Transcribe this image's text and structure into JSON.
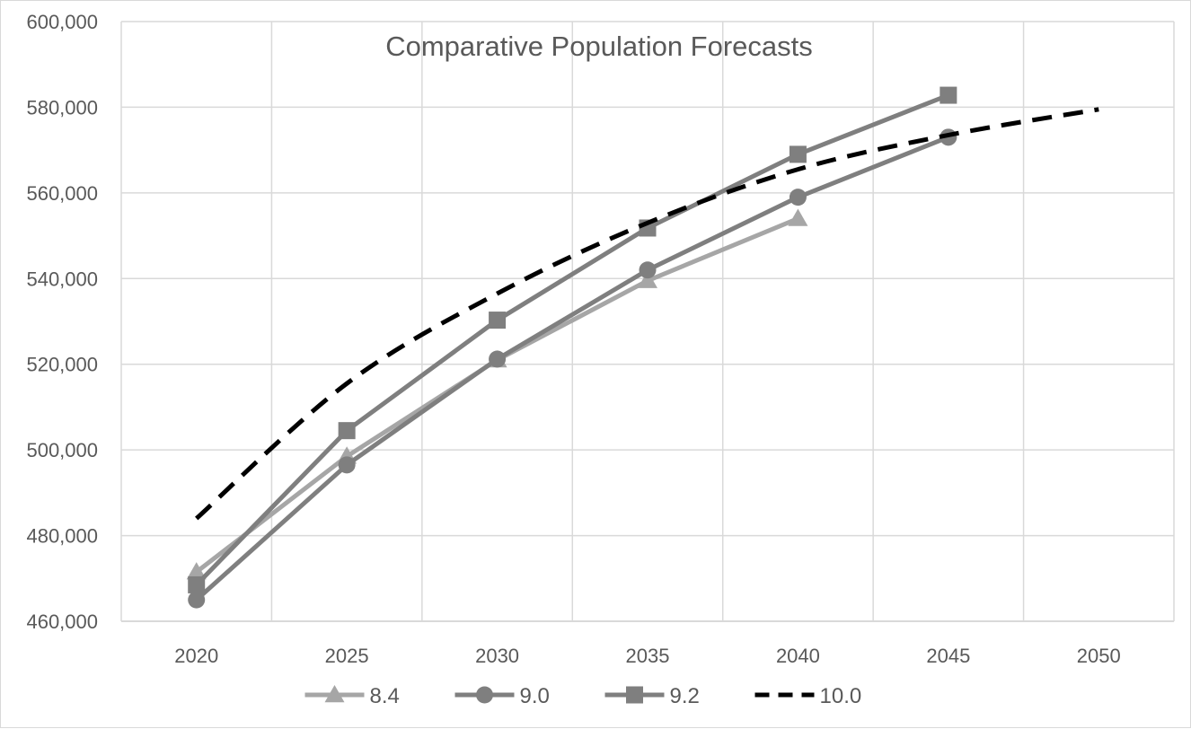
{
  "chart_data": {
    "type": "line",
    "title": "Comparative Population Forecasts",
    "xlabel": "",
    "ylabel": "",
    "ylim": [
      460000,
      600000
    ],
    "yticks": [
      460000,
      480000,
      500000,
      520000,
      540000,
      560000,
      580000,
      600000
    ],
    "ytick_labels": [
      "460,000",
      "480,000",
      "500,000",
      "520,000",
      "540,000",
      "560,000",
      "580,000",
      "600,000"
    ],
    "categories": [
      "2020",
      "2025",
      "2030",
      "2035",
      "2040",
      "2045",
      "2050"
    ],
    "grid": true,
    "legend_position": "bottom",
    "series": [
      {
        "name": "8.4",
        "values": [
          471500,
          498500,
          521000,
          539500,
          554000,
          null,
          null
        ],
        "color": "#a6a6a6",
        "marker": "triangle",
        "dash": "solid"
      },
      {
        "name": "9.0",
        "values": [
          465000,
          496500,
          521200,
          542000,
          559000,
          573000,
          null
        ],
        "color": "#7f7f7f",
        "marker": "circle",
        "dash": "solid"
      },
      {
        "name": "9.2",
        "values": [
          468500,
          504500,
          530300,
          551800,
          569000,
          582800,
          null
        ],
        "color": "#7f7f7f",
        "marker": "square",
        "dash": "solid"
      },
      {
        "name": "10.0",
        "values": [
          484000,
          515500,
          536500,
          553000,
          565500,
          573500,
          579500
        ],
        "color": "#000000",
        "marker": "none",
        "dash": "dashed"
      }
    ]
  }
}
